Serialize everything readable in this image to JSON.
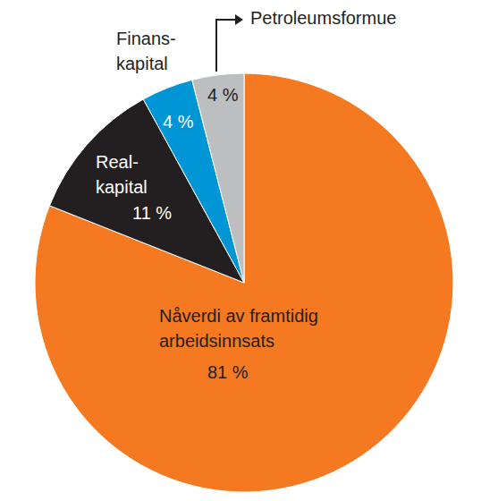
{
  "chart_data": {
    "type": "pie",
    "categories": [
      "Nåverdi av framtidig\narbeidsinnsats",
      "Real-\nkapital",
      "Finans-\nkapital",
      "Petroleumsformue"
    ],
    "values": [
      81,
      11,
      4,
      4
    ],
    "value_labels": [
      "81 %",
      "11 %",
      "4 %",
      "4 %"
    ],
    "colors": [
      "#f47920",
      "#231f20",
      "#0096d6",
      "#bcbec0"
    ],
    "data_labels": true
  }
}
